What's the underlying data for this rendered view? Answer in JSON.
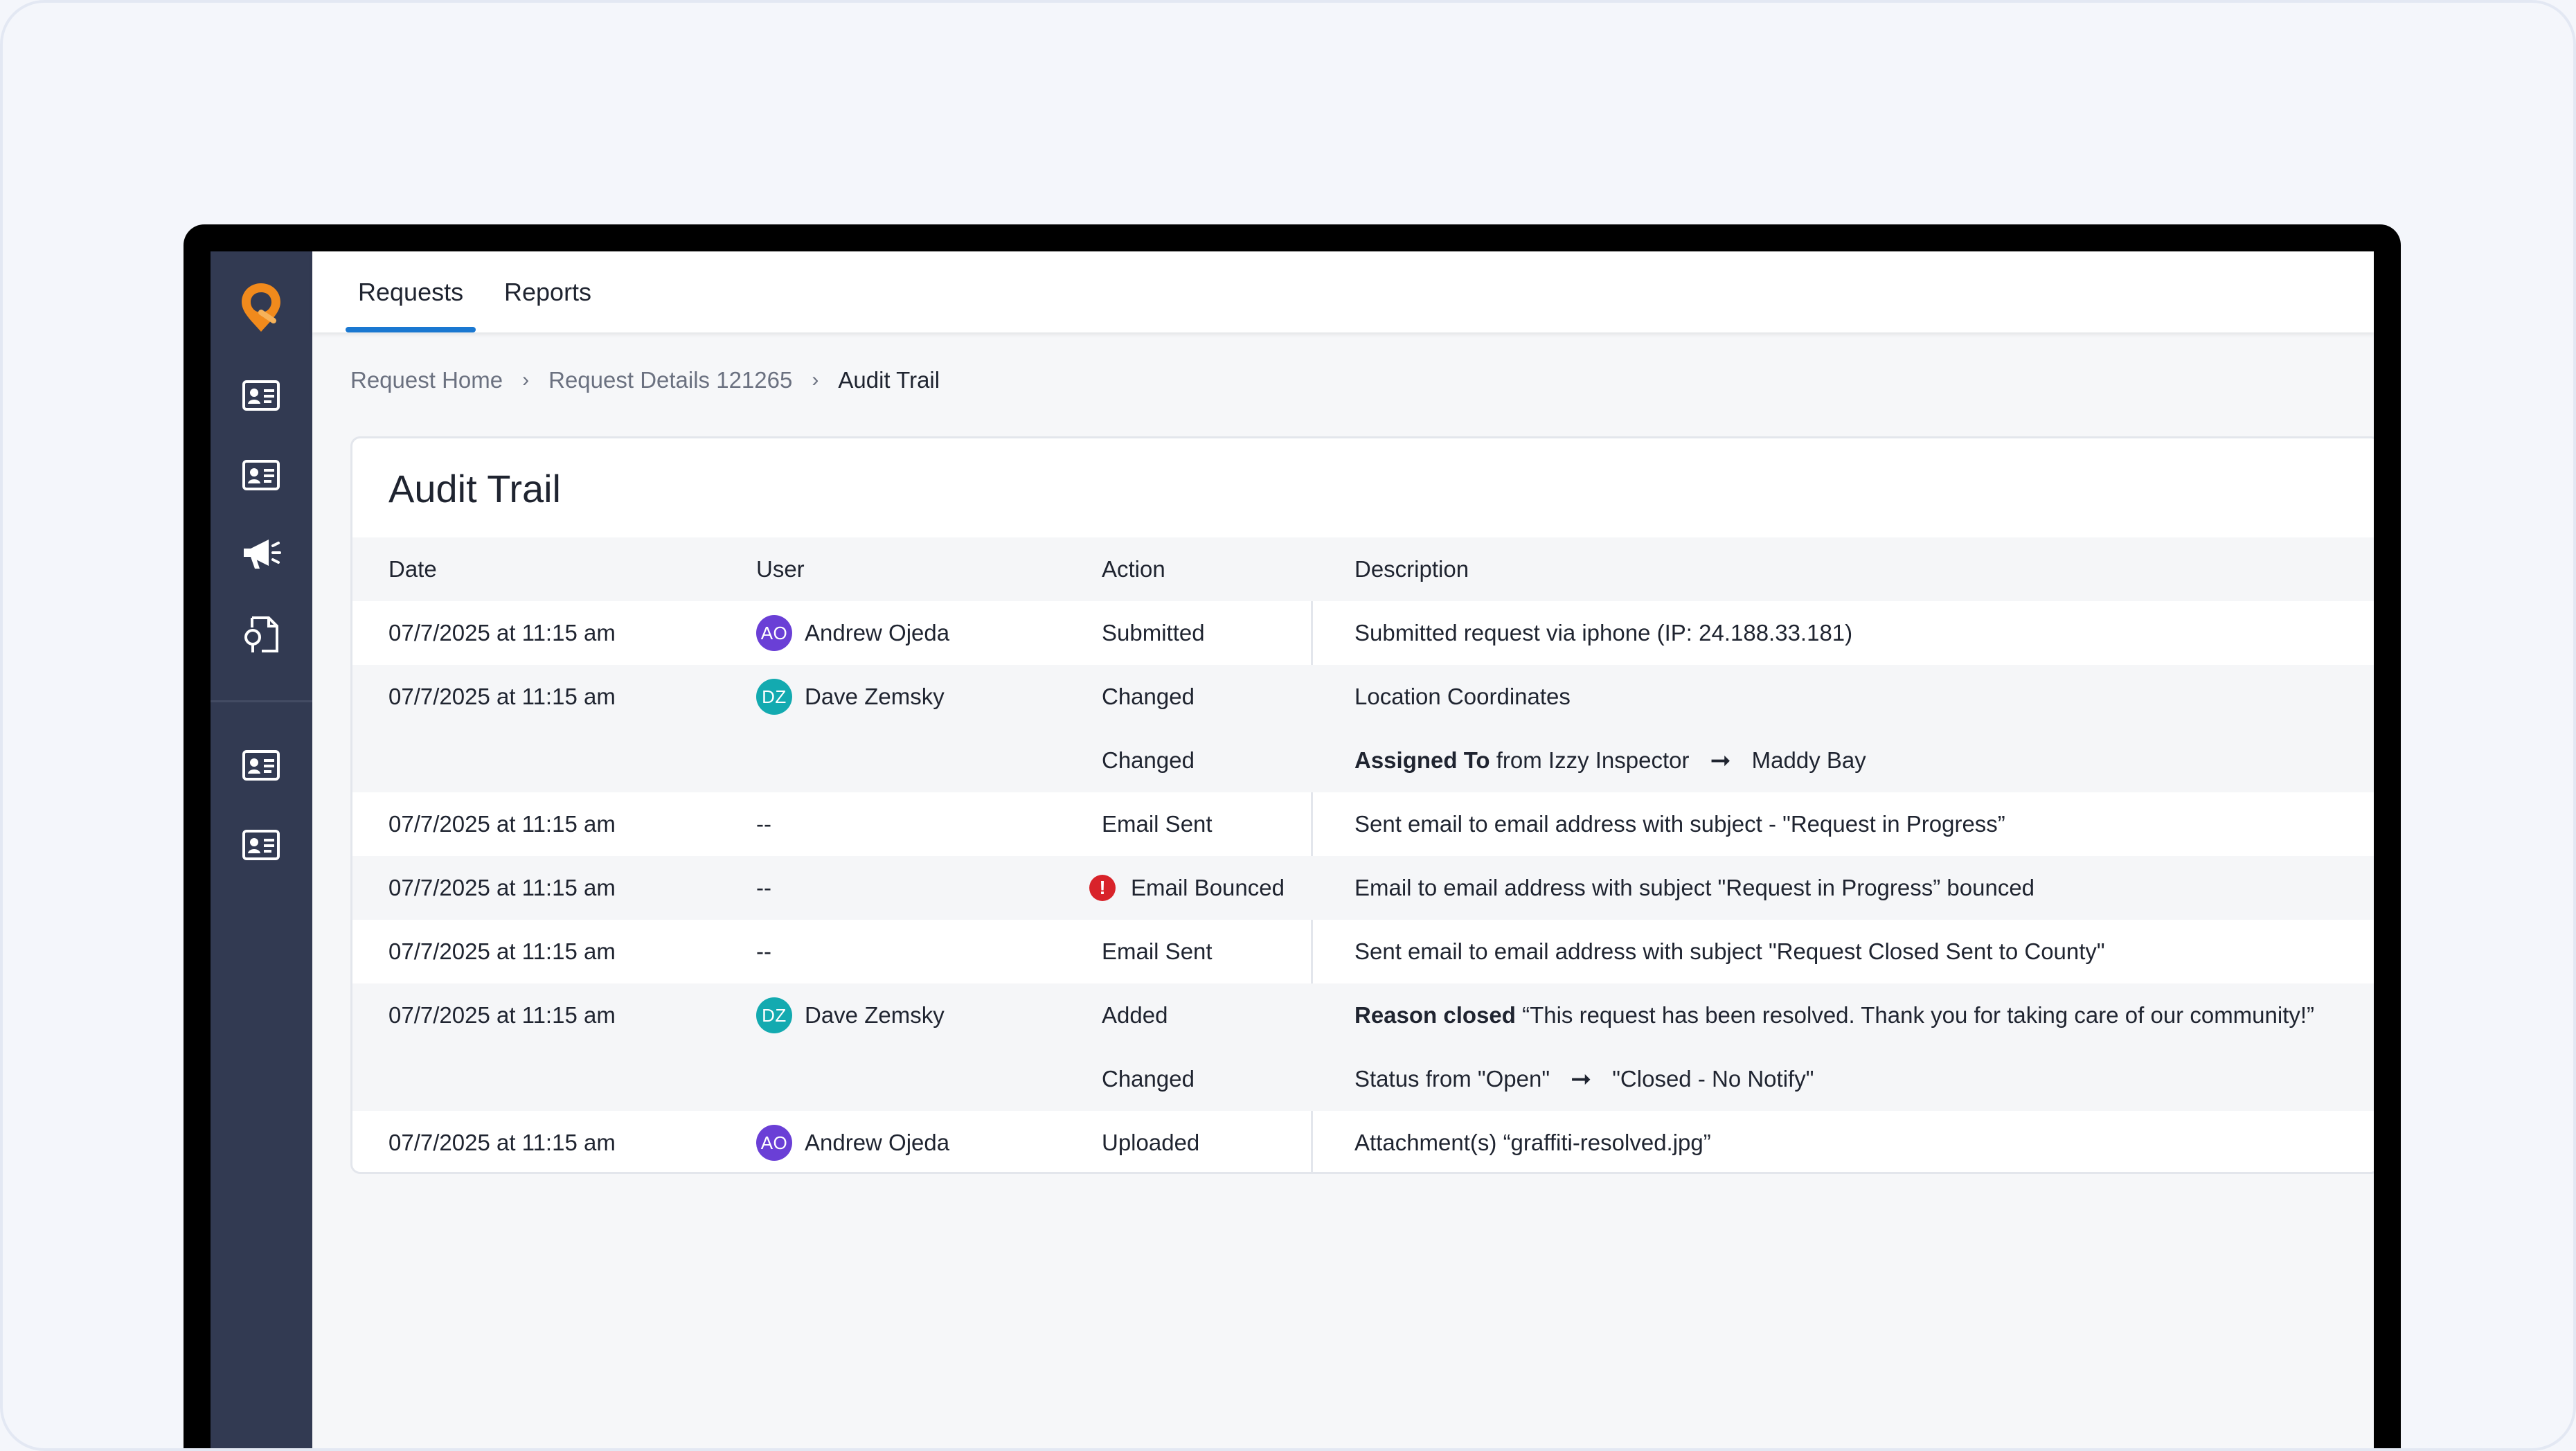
{
  "tabs": [
    {
      "label": "Requests",
      "active": true
    },
    {
      "label": "Reports",
      "active": false
    }
  ],
  "breadcrumb": [
    "Request Home",
    "Request Details 121265",
    "Audit Trail"
  ],
  "card_title": "Audit Trail",
  "columns": {
    "date": "Date",
    "user": "User",
    "action": "Action",
    "description": "Description"
  },
  "rows": {
    "r0": {
      "date": "07/7/2025 at 11:15 am",
      "user_initials": "AO",
      "user": "Andrew Ojeda",
      "action": "Submitted",
      "description": "Submitted request via iphone (IP: 24.188.33.181)"
    },
    "r1": {
      "date": "07/7/2025 at 11:15 am",
      "user_initials": "DZ",
      "user": "Dave Zemsky",
      "action": "Changed",
      "description": "Location Coordinates"
    },
    "r2": {
      "action": "Changed",
      "desc_bold": "Assigned To",
      "desc_from": "from Izzy Inspector",
      "desc_to": "Maddy Bay"
    },
    "r3": {
      "date": "07/7/2025 at 11:15 am",
      "user": "--",
      "action": "Email Sent",
      "description": "Sent email to email address with subject - \"Request in Progress”"
    },
    "r4": {
      "date": "07/7/2025 at 11:15 am",
      "user": "--",
      "action": "Email Bounced",
      "description": "Email to email address with subject \"Request in Progress” bounced"
    },
    "r5": {
      "date": "07/7/2025 at 11:15 am",
      "user": "--",
      "action": "Email Sent",
      "description": "Sent email to email address with subject \"Request Closed Sent to County\""
    },
    "r6": {
      "date": "07/7/2025 at 11:15 am",
      "user_initials": "DZ",
      "user": "Dave Zemsky",
      "action": "Added",
      "desc_bold": "Reason closed",
      "desc_rest": "“This request has been resolved. Thank you for taking care of our community!”"
    },
    "r7": {
      "action": "Changed",
      "desc_from": "Status from \"Open\"",
      "desc_to": "\"Closed - No Notify\""
    },
    "r8": {
      "date": "07/7/2025 at 11:15 am",
      "user_initials": "AO",
      "user": "Andrew Ojeda",
      "action": "Uploaded",
      "description": "Attachment(s) “graffiti-resolved.jpg”"
    }
  },
  "colors": {
    "sidebar": "#323a52",
    "accent": "#1a78d1",
    "logo": "#f18a1c",
    "error": "#d8232a",
    "avatar_ao": "#6a3fd6",
    "avatar_dz": "#13aab0"
  },
  "icons": [
    "logo-pin-icon",
    "id-card-icon",
    "megaphone-icon",
    "location-document-icon",
    "chevron-right-icon",
    "error-icon",
    "arrow-right-icon"
  ]
}
